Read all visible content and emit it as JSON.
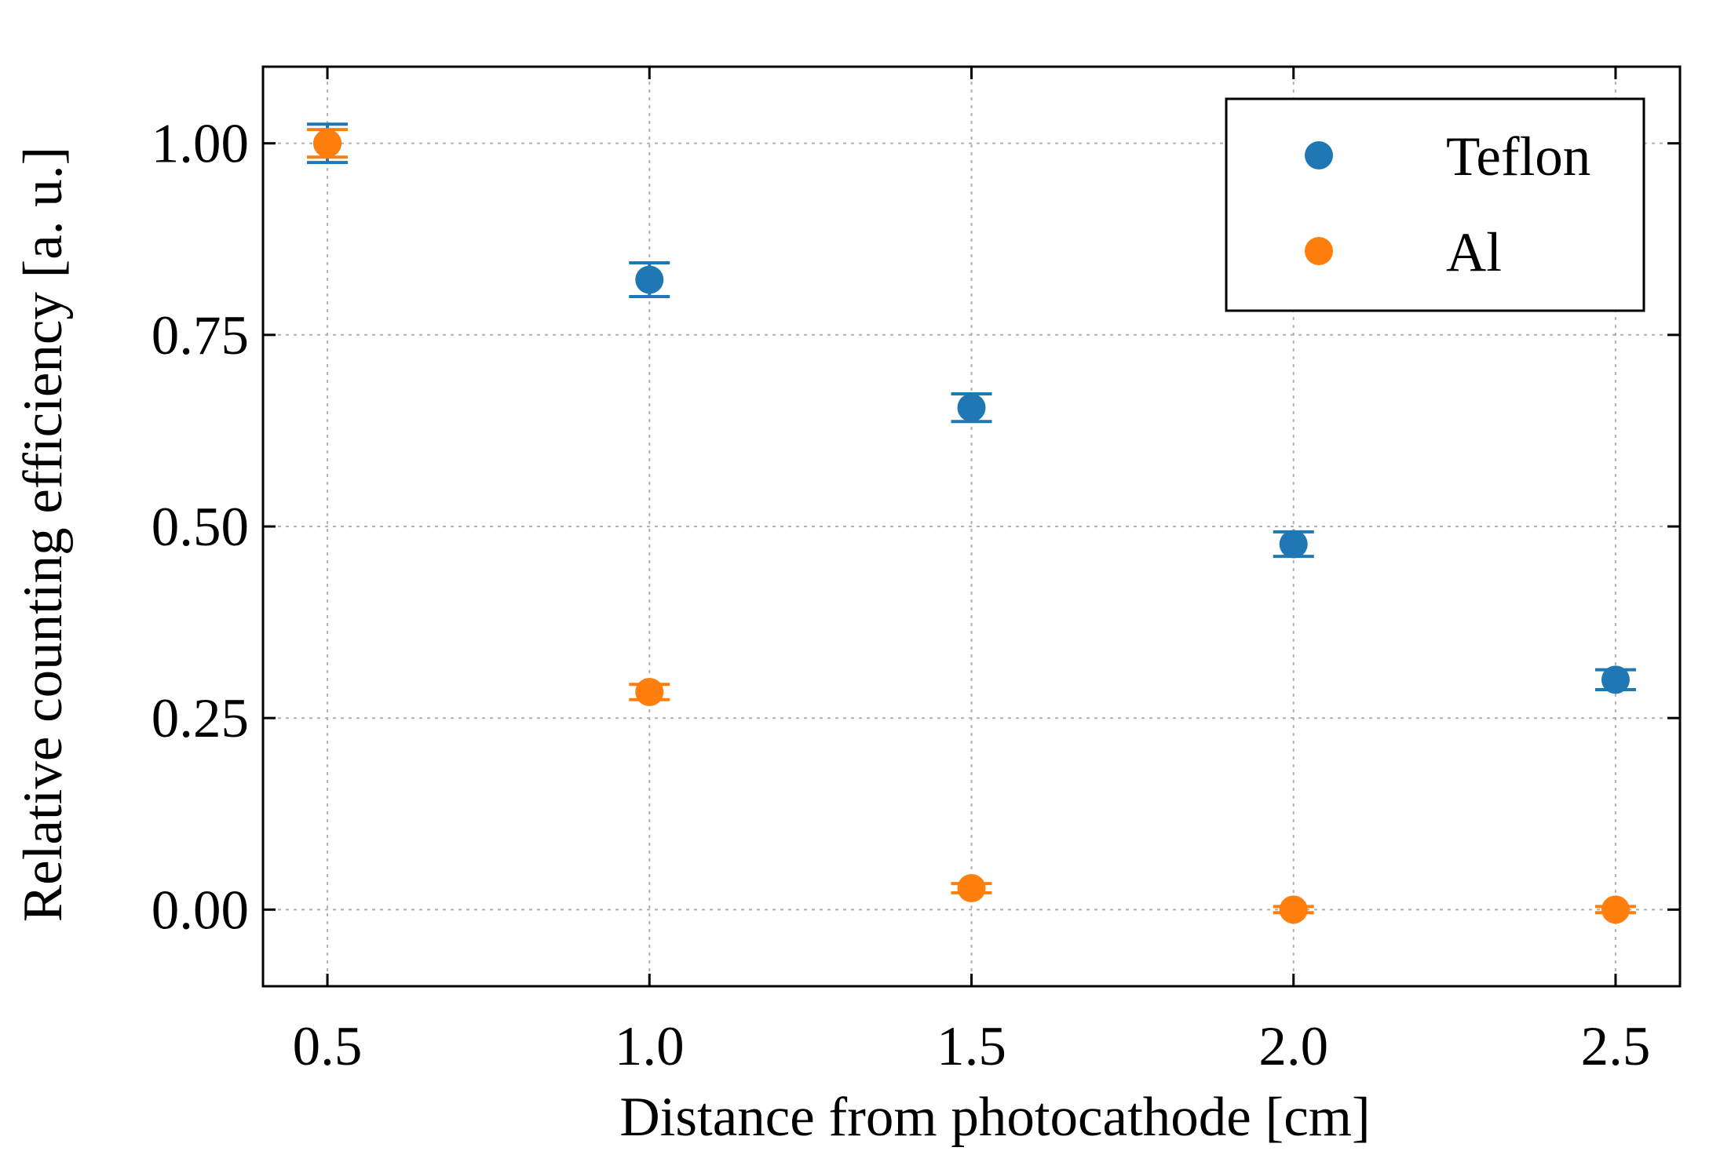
{
  "chart_data": {
    "type": "scatter",
    "xlabel": "Distance from photocathode [cm]",
    "ylabel": "Relative counting efficiency [a. u.]",
    "xlim": [
      0.4,
      2.6
    ],
    "ylim": [
      -0.1,
      1.1
    ],
    "x_ticks": [
      "0.5",
      "1.0",
      "1.5",
      "2.0",
      "2.5"
    ],
    "y_ticks": [
      "0.00",
      "0.25",
      "0.50",
      "0.75",
      "1.00"
    ],
    "grid": true,
    "legend_position": "top-right",
    "series": [
      {
        "name": "Teflon",
        "color": "#1f77b4",
        "x": [
          0.5,
          1.0,
          1.5,
          2.0,
          2.5
        ],
        "y": [
          1.0,
          0.822,
          0.655,
          0.477,
          0.3
        ],
        "yerr": [
          0.025,
          0.022,
          0.018,
          0.016,
          0.013
        ]
      },
      {
        "name": "Al",
        "color": "#ff7f0e",
        "x": [
          0.5,
          1.0,
          1.5,
          2.0,
          2.5
        ],
        "y": [
          1.0,
          0.284,
          0.028,
          0.0,
          0.0
        ],
        "yerr": [
          0.018,
          0.01,
          0.006,
          0.004,
          0.004
        ]
      }
    ]
  }
}
